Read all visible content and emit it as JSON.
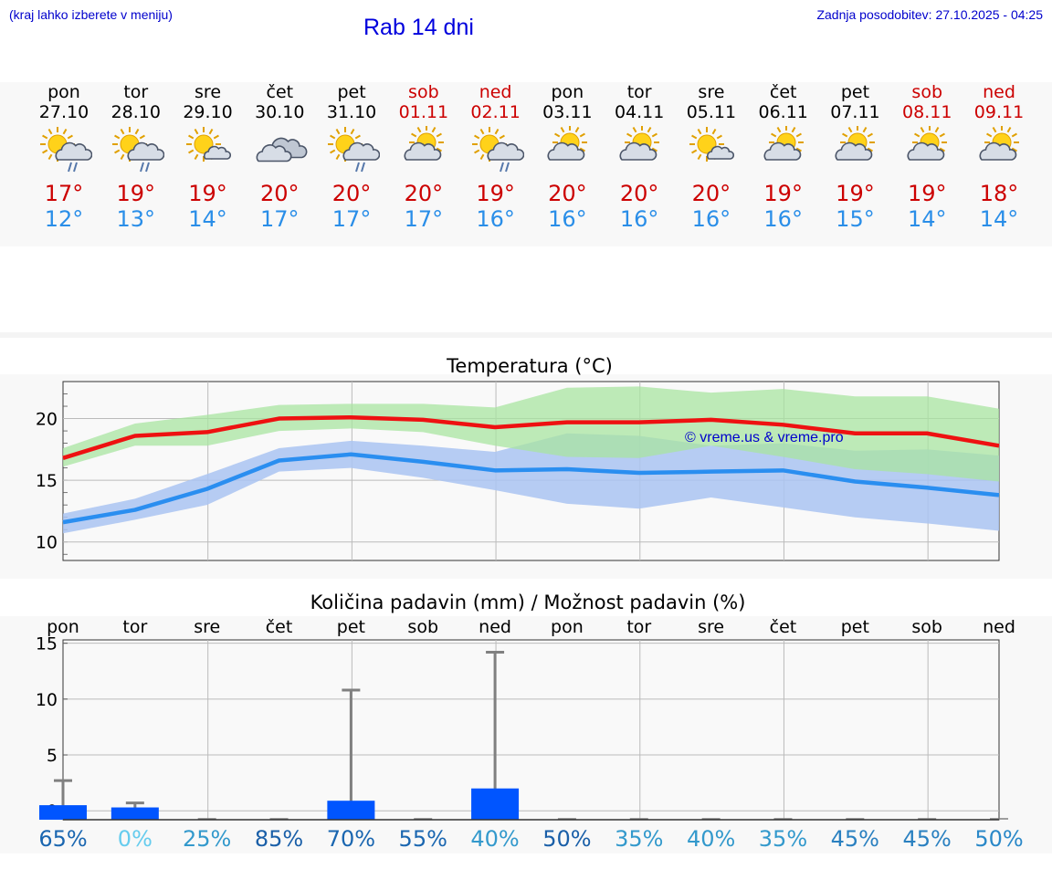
{
  "header": {
    "note_left": "(kraj lahko izberete v meniju)",
    "title": "Rab 14 dni",
    "last_update": "Zadnja posodobitev: 27.10.2025 - 04:25"
  },
  "days": [
    {
      "name": "pon",
      "date": "27.10",
      "weekend": false,
      "icon": "sun-cloud-rain-icon",
      "max": "17°",
      "min": "12°"
    },
    {
      "name": "tor",
      "date": "28.10",
      "weekend": false,
      "icon": "sun-cloud-rain-icon",
      "max": "19°",
      "min": "13°"
    },
    {
      "name": "sre",
      "date": "29.10",
      "weekend": false,
      "icon": "sun-small-cloud-icon",
      "max": "19°",
      "min": "14°"
    },
    {
      "name": "čet",
      "date": "30.10",
      "weekend": false,
      "icon": "overcast-icon",
      "max": "20°",
      "min": "17°"
    },
    {
      "name": "pet",
      "date": "31.10",
      "weekend": false,
      "icon": "sun-cloud-rain-icon",
      "max": "20°",
      "min": "17°"
    },
    {
      "name": "sob",
      "date": "01.11",
      "weekend": true,
      "icon": "sun-cloud-icon",
      "max": "20°",
      "min": "17°"
    },
    {
      "name": "ned",
      "date": "02.11",
      "weekend": true,
      "icon": "sun-cloud-rain-icon",
      "max": "19°",
      "min": "16°"
    },
    {
      "name": "pon",
      "date": "03.11",
      "weekend": false,
      "icon": "sun-cloud-icon",
      "max": "20°",
      "min": "16°"
    },
    {
      "name": "tor",
      "date": "04.11",
      "weekend": false,
      "icon": "sun-cloud-icon",
      "max": "20°",
      "min": "16°"
    },
    {
      "name": "sre",
      "date": "05.11",
      "weekend": false,
      "icon": "sun-small-cloud-icon",
      "max": "20°",
      "min": "16°"
    },
    {
      "name": "čet",
      "date": "06.11",
      "weekend": false,
      "icon": "sun-cloud-icon",
      "max": "19°",
      "min": "16°"
    },
    {
      "name": "pet",
      "date": "07.11",
      "weekend": false,
      "icon": "sun-cloud-icon",
      "max": "19°",
      "min": "15°"
    },
    {
      "name": "sob",
      "date": "08.11",
      "weekend": true,
      "icon": "sun-cloud-icon",
      "max": "19°",
      "min": "14°"
    },
    {
      "name": "ned",
      "date": "09.11",
      "weekend": true,
      "icon": "sun-cloud-icon",
      "max": "18°",
      "min": "14°"
    }
  ],
  "colors": {
    "max_line": "#ee1111",
    "min_line": "#2a8ef0",
    "max_band": "#a8e4a0",
    "min_band": "#aac4f2",
    "bar": "#0055ff",
    "whisker": "#808080",
    "weekend": "#cc0000"
  },
  "chart_data": [
    {
      "type": "line",
      "title": "Temperatura (°C)",
      "watermark": "© vreme.us & vreme.pro",
      "ylim": [
        8.5,
        23
      ],
      "yticks": [
        10,
        15,
        20
      ],
      "x": [
        0,
        1,
        2,
        3,
        4,
        5,
        6,
        7,
        8,
        9,
        10,
        11,
        12,
        13
      ],
      "series": [
        {
          "name": "max",
          "values": [
            16.8,
            18.6,
            18.9,
            20.0,
            20.1,
            19.9,
            19.3,
            19.7,
            19.7,
            19.9,
            19.5,
            18.8,
            18.8,
            17.8
          ],
          "band_high": [
            17.6,
            19.6,
            20.3,
            21.1,
            21.2,
            21.2,
            20.9,
            22.5,
            22.6,
            22.1,
            22.4,
            21.8,
            21.8,
            20.8
          ],
          "band_low": [
            16.1,
            17.8,
            17.8,
            19.0,
            19.2,
            18.9,
            17.8,
            16.9,
            16.8,
            17.8,
            16.9,
            15.9,
            15.5,
            14.9
          ]
        },
        {
          "name": "min",
          "values": [
            11.6,
            12.6,
            14.3,
            16.6,
            17.1,
            16.5,
            15.8,
            15.9,
            15.6,
            15.7,
            15.8,
            14.9,
            14.4,
            13.8
          ],
          "band_high": [
            12.3,
            13.5,
            15.5,
            17.6,
            18.2,
            17.8,
            17.3,
            18.8,
            18.6,
            17.8,
            18.0,
            17.4,
            17.5,
            17.0
          ],
          "band_low": [
            10.7,
            11.8,
            13.0,
            15.7,
            16.0,
            15.2,
            14.2,
            13.1,
            12.7,
            13.6,
            12.8,
            12.0,
            11.5,
            10.9
          ]
        }
      ]
    },
    {
      "type": "bar",
      "title": "Količina padavin (mm) / Možnost padavin (%)",
      "ylim": [
        -0.8,
        15.3
      ],
      "yticks": [
        0,
        5,
        10,
        15
      ],
      "categories": [
        "pon",
        "tor",
        "sre",
        "čet",
        "pet",
        "sob",
        "ned",
        "pon",
        "tor",
        "sre",
        "čet",
        "pet",
        "sob",
        "ned"
      ],
      "values": [
        0.5,
        0.3,
        0,
        0,
        0.9,
        0,
        2.0,
        0,
        0,
        0,
        0,
        0,
        0,
        0
      ],
      "whisker_max": [
        2.7,
        0.7,
        0,
        0,
        10.8,
        0,
        14.2,
        0,
        0,
        0,
        0,
        0,
        0,
        0
      ],
      "probability": [
        "65%",
        "0%",
        "25%",
        "85%",
        "70%",
        "55%",
        "40%",
        "50%",
        "35%",
        "40%",
        "35%",
        "45%",
        "45%",
        "50%"
      ],
      "probability_colors": [
        "#1a66b0",
        "#66ccee",
        "#3399cc",
        "#1a5fa8",
        "#1a66b0",
        "#1a66b0",
        "#3399cc",
        "#1a5fa8",
        "#3399cc",
        "#3399cc",
        "#3399cc",
        "#2a80c0",
        "#2a80c0",
        "#2a88c8"
      ]
    }
  ]
}
